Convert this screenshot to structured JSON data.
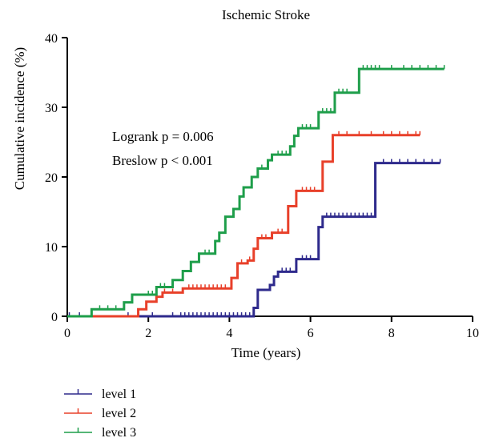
{
  "chart_data": {
    "type": "line",
    "title": "Ischemic Stroke",
    "xlabel": "Time (years)",
    "ylabel": "Cumulative incidence (%)",
    "xlim": [
      0,
      10
    ],
    "ylim": [
      0,
      40
    ],
    "xticks": [
      0,
      2,
      4,
      6,
      8,
      10
    ],
    "yticks": [
      0,
      10,
      20,
      30,
      40
    ],
    "grid": false,
    "legend_position": "bottom-left",
    "annotations": [
      "Logrank p = 0.006",
      "Breslow p < 0.001"
    ],
    "series": [
      {
        "name": "level 1",
        "color": "#2e2a8c",
        "steps": [
          [
            0,
            0
          ],
          [
            4.6,
            1.2
          ],
          [
            4.7,
            3.8
          ],
          [
            5.0,
            4.5
          ],
          [
            5.1,
            5.7
          ],
          [
            5.2,
            6.4
          ],
          [
            5.65,
            8.2
          ],
          [
            6.2,
            12.8
          ],
          [
            6.3,
            14.3
          ],
          [
            7.6,
            22.0
          ],
          [
            9.2,
            22.0
          ]
        ],
        "censored": [
          0.05,
          0.3,
          1.5,
          2.1,
          2.6,
          2.8,
          2.9,
          3.0,
          3.1,
          3.2,
          3.3,
          3.4,
          3.5,
          3.6,
          3.7,
          3.8,
          3.9,
          4.0,
          4.1,
          4.2,
          4.3,
          4.4,
          4.5,
          5.3,
          5.4,
          5.5,
          5.8,
          5.9,
          6.0,
          6.4,
          6.5,
          6.6,
          6.7,
          6.8,
          6.9,
          7.0,
          7.1,
          7.2,
          7.3,
          7.4,
          7.5,
          7.8,
          8.0,
          8.2,
          8.4,
          8.6,
          8.8,
          9.0,
          9.2
        ]
      },
      {
        "name": "level 2",
        "color": "#e8402a",
        "steps": [
          [
            0,
            0
          ],
          [
            1.75,
            1.0
          ],
          [
            1.95,
            2.1
          ],
          [
            2.2,
            2.8
          ],
          [
            2.35,
            3.4
          ],
          [
            2.85,
            4.0
          ],
          [
            4.05,
            5.5
          ],
          [
            4.2,
            7.6
          ],
          [
            4.45,
            8.0
          ],
          [
            4.6,
            9.7
          ],
          [
            4.7,
            11.2
          ],
          [
            5.05,
            12.0
          ],
          [
            5.45,
            15.8
          ],
          [
            5.65,
            18.0
          ],
          [
            6.3,
            22.2
          ],
          [
            6.55,
            26.0
          ],
          [
            8.7,
            26.0
          ]
        ],
        "censored": [
          2.4,
          2.6,
          3.0,
          3.1,
          3.2,
          3.3,
          3.4,
          3.5,
          3.6,
          3.7,
          3.8,
          3.9,
          4.3,
          4.5,
          4.8,
          4.9,
          5.2,
          5.3,
          5.8,
          5.9,
          6.0,
          6.1,
          6.7,
          6.9,
          7.2,
          7.5,
          7.8,
          8.0,
          8.2,
          8.4,
          8.6,
          8.7
        ]
      },
      {
        "name": "level 3",
        "color": "#1e9e4a",
        "steps": [
          [
            0,
            0
          ],
          [
            0.6,
            1.0
          ],
          [
            1.4,
            2.0
          ],
          [
            1.6,
            3.1
          ],
          [
            2.2,
            4.2
          ],
          [
            2.6,
            5.2
          ],
          [
            2.85,
            6.5
          ],
          [
            3.05,
            7.8
          ],
          [
            3.25,
            9.0
          ],
          [
            3.65,
            10.8
          ],
          [
            3.75,
            12.0
          ],
          [
            3.9,
            14.3
          ],
          [
            4.1,
            15.4
          ],
          [
            4.25,
            17.2
          ],
          [
            4.35,
            18.5
          ],
          [
            4.55,
            20.0
          ],
          [
            4.7,
            21.2
          ],
          [
            4.95,
            22.4
          ],
          [
            5.05,
            23.2
          ],
          [
            5.5,
            24.4
          ],
          [
            5.6,
            25.9
          ],
          [
            5.7,
            27.0
          ],
          [
            6.2,
            29.3
          ],
          [
            6.6,
            32.1
          ],
          [
            7.2,
            35.5
          ],
          [
            9.3,
            35.5
          ]
        ],
        "censored": [
          0.8,
          1.0,
          1.2,
          2.0,
          2.1,
          2.3,
          2.4,
          3.4,
          3.5,
          4.8,
          5.2,
          5.3,
          5.4,
          5.8,
          5.9,
          6.0,
          6.3,
          6.4,
          6.5,
          6.7,
          6.8,
          6.9,
          7.3,
          7.4,
          7.5,
          7.6,
          7.7,
          8.0,
          8.3,
          8.5,
          8.7,
          8.9,
          9.1,
          9.3
        ]
      }
    ]
  }
}
